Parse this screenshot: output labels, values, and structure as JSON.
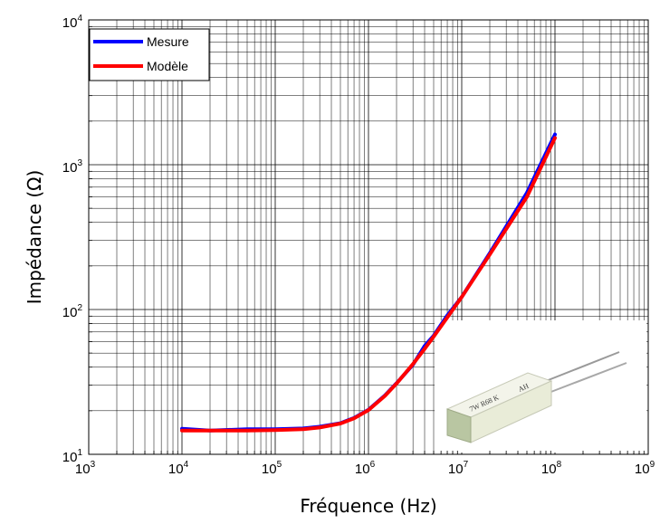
{
  "chart_data": {
    "type": "line",
    "xscale": "log",
    "yscale": "log",
    "xlim": [
      1000,
      1000000000
    ],
    "ylim": [
      10,
      10000
    ],
    "grid": true,
    "xlabel": "Fréquence (Hz)",
    "ylabel": "Impédance (Ω)",
    "x_ticks": [
      {
        "base": "10",
        "exp": "3"
      },
      {
        "base": "10",
        "exp": "4"
      },
      {
        "base": "10",
        "exp": "5"
      },
      {
        "base": "10",
        "exp": "6"
      },
      {
        "base": "10",
        "exp": "7"
      },
      {
        "base": "10",
        "exp": "8"
      },
      {
        "base": "10",
        "exp": "9"
      }
    ],
    "y_ticks": [
      {
        "base": "10",
        "exp": "1"
      },
      {
        "base": "10",
        "exp": "2"
      },
      {
        "base": "10",
        "exp": "3"
      },
      {
        "base": "10",
        "exp": "4"
      }
    ],
    "legend_position": "top-left",
    "series": [
      {
        "name": "Mesure",
        "color": "#0000ff",
        "x": [
          10000,
          20000,
          50000,
          100000,
          200000,
          300000,
          500000,
          700000,
          1000000,
          1500000,
          2000000,
          3000000,
          4000000,
          5000000,
          7000000,
          10000000,
          20000000,
          50000000,
          100000000
        ],
        "y": [
          15.0,
          14.6,
          14.9,
          14.9,
          15.1,
          15.5,
          16.4,
          17.8,
          20.3,
          25.5,
          31.0,
          41.5,
          56.0,
          66.0,
          91.0,
          122.0,
          245.0,
          640.0,
          1620.0
        ]
      },
      {
        "name": "Modèle",
        "color": "#ff0000",
        "x": [
          10000,
          20000,
          50000,
          100000,
          200000,
          300000,
          500000,
          700000,
          1000000,
          1500000,
          2000000,
          3000000,
          4000000,
          5000000,
          7000000,
          10000000,
          20000000,
          50000000,
          100000000
        ],
        "y": [
          14.6,
          14.6,
          14.6,
          14.7,
          14.9,
          15.3,
          16.3,
          17.7,
          20.2,
          25.3,
          30.8,
          42.0,
          53.5,
          65.0,
          88.0,
          122.0,
          240.0,
          600.0,
          1530.0
        ]
      }
    ]
  },
  "inset_photo": {
    "label_text": "7W R68 K",
    "label_code": "AH"
  }
}
